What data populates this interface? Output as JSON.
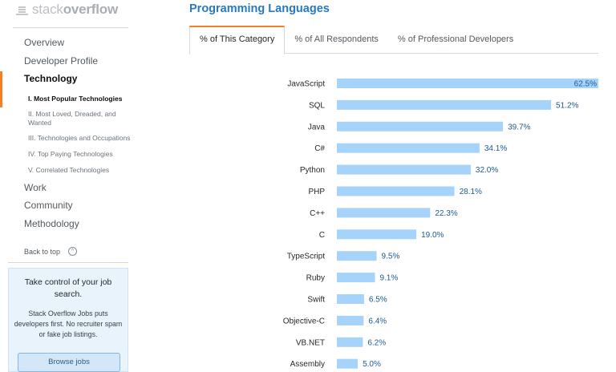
{
  "logo": {
    "prefix": "stack",
    "suffix": "overflow"
  },
  "sidebar": {
    "items": [
      {
        "label": "Overview",
        "active": false
      },
      {
        "label": "Developer Profile",
        "active": false
      },
      {
        "label": "Technology",
        "active": true,
        "children": [
          {
            "label": "I. Most Popular Technologies",
            "active": true
          },
          {
            "label": "II. Most Loved, Dreaded, and Wanted",
            "active": false
          },
          {
            "label": "III. Technologies and Occupations",
            "active": false
          },
          {
            "label": "IV. Top Paying Technologies",
            "active": false
          },
          {
            "label": "V. Correlated Technologies",
            "active": false
          }
        ]
      },
      {
        "label": "Work",
        "active": false
      },
      {
        "label": "Community",
        "active": false
      },
      {
        "label": "Methodology",
        "active": false
      }
    ],
    "back_to_top": "Back to top",
    "jobs": {
      "title": "Take control of your job search.",
      "body": "Stack Overflow Jobs puts developers first. No recruiter spam or fake job listings.",
      "button": "Browse jobs"
    }
  },
  "main": {
    "title": "Programming Languages",
    "tabs": [
      {
        "label": "% of This Category",
        "active": true
      },
      {
        "label": "% of All Respondents",
        "active": false
      },
      {
        "label": "% of Professional Developers",
        "active": false
      }
    ]
  },
  "colors": {
    "bar": "#a6d3f9",
    "label": "#1b5a93",
    "accent": "#f48024",
    "title": "#2679c2"
  },
  "chart_data": {
    "type": "bar",
    "orientation": "horizontal",
    "title": "Programming Languages",
    "xlim": [
      0,
      62.5
    ],
    "unit": "%",
    "categories": [
      "JavaScript",
      "SQL",
      "Java",
      "C#",
      "Python",
      "PHP",
      "C++",
      "C",
      "TypeScript",
      "Ruby",
      "Swift",
      "Objective-C",
      "VB.NET",
      "Assembly"
    ],
    "values": [
      62.5,
      51.2,
      39.7,
      34.1,
      32.0,
      28.1,
      22.3,
      19.0,
      9.5,
      9.1,
      6.5,
      6.4,
      6.2,
      5.0
    ],
    "labels": [
      "62.5%",
      "51.2%",
      "39.7%",
      "34.1%",
      "32.0%",
      "28.1%",
      "22.3%",
      "19.0%",
      "9.5%",
      "9.1%",
      "6.5%",
      "6.4%",
      "6.2%",
      "5.0%"
    ]
  }
}
